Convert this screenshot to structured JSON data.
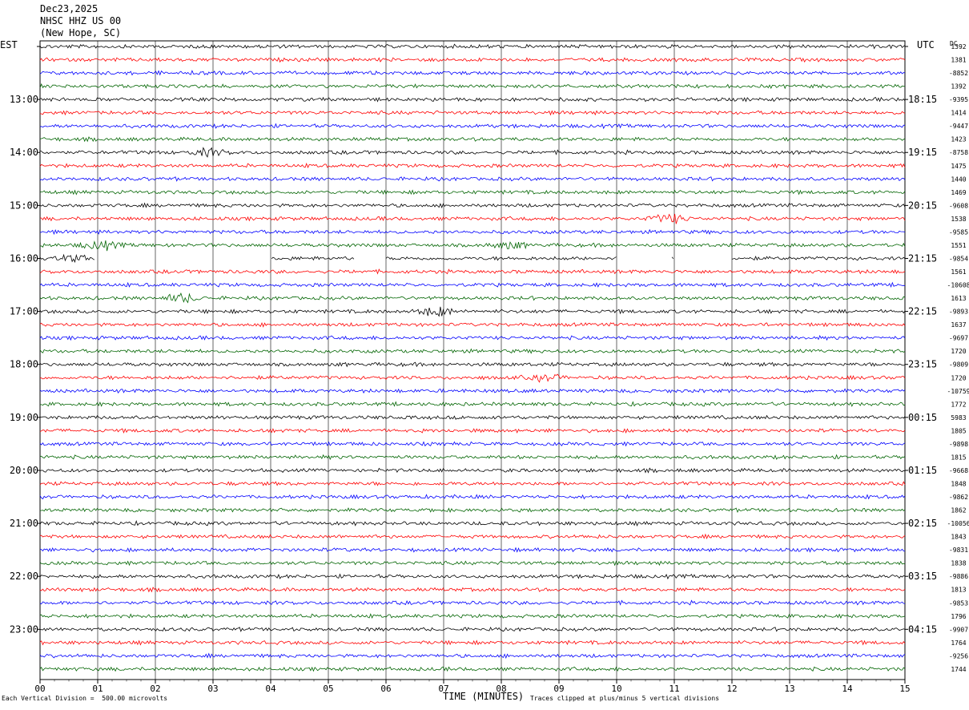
{
  "header": {
    "date": "Dec23,2025",
    "station": "NHSC HHZ US 00",
    "location": "(New Hope, SC)",
    "left_tz": "EST",
    "right_tz": "UTC",
    "dc_label": "DC"
  },
  "footer": {
    "division_note": "Each Vertical Division =  500.00 microvolts",
    "xaxis_title": "TIME (MINUTES)",
    "clip_note": "Traces clipped at plus/minus 5 vertical divisions"
  },
  "chart_data": {
    "type": "line",
    "title": "NHSC HHZ US 00 (New Hope, SC) Dec23,2025",
    "xlabel": "TIME (MINUTES)",
    "xlim": [
      0,
      15
    ],
    "x_ticks": [
      "00",
      "01",
      "02",
      "03",
      "04",
      "05",
      "06",
      "07",
      "08",
      "09",
      "10",
      "11",
      "12",
      "13",
      "14",
      "15"
    ],
    "grid": "vertical lines each minute",
    "rows_per_hour": 4,
    "trace_colors": [
      "#000000",
      "#ff0000",
      "#0000ff",
      "#006400"
    ],
    "est_labels": [
      "13:00",
      "14:00",
      "15:00",
      "16:00",
      "17:00",
      "18:00",
      "19:00",
      "20:00",
      "21:00",
      "22:00",
      "23:00"
    ],
    "utc_labels": [
      "18:15",
      "19:15",
      "20:15",
      "21:15",
      "22:15",
      "23:15",
      "00:15",
      "01:15",
      "02:15",
      "03:15",
      "04:15"
    ],
    "dc_offsets": [
      "1392",
      "1381",
      "-8852",
      "1392",
      "-9395",
      "1414",
      "-9447",
      "1423",
      "-8758",
      "1475",
      "1440",
      "1469",
      "-9608",
      "1538",
      "-9585",
      "1551",
      "-9854",
      "1561",
      "-10608",
      "1613",
      "-9893",
      "1637",
      "-9697",
      "1720",
      "-9809",
      "1720",
      "-10759",
      "1772",
      "5983",
      "1805",
      "-9898",
      "1815",
      "-9668",
      "1848",
      "-9862",
      "1862",
      "-10056",
      "1843",
      "-9831",
      "1838",
      "-9886",
      "1813",
      "-9853",
      "1796",
      "-9907",
      "1764",
      "-9256",
      "1744"
    ],
    "gaps": [
      {
        "row": 16,
        "from_min": 0.95,
        "to_min": 4.0
      },
      {
        "row": 16,
        "from_min": 5.45,
        "to_min": 6.0
      },
      {
        "row": 16,
        "from_min": 10.0,
        "to_min": 10.95
      },
      {
        "row": 16,
        "from_min": 11.0,
        "to_min": 12.0
      }
    ],
    "events": [
      {
        "row": 8,
        "minute": 2.9,
        "strength": 1.6
      },
      {
        "row": 13,
        "minute": 10.9,
        "strength": 2.2
      },
      {
        "row": 15,
        "minute": 1.05,
        "strength": 2.0
      },
      {
        "row": 15,
        "minute": 8.1,
        "strength": 1.5
      },
      {
        "row": 16,
        "minute": 0.6,
        "strength": 1.8
      },
      {
        "row": 19,
        "minute": 2.45,
        "strength": 2.0
      },
      {
        "row": 20,
        "minute": 6.85,
        "strength": 2.0
      },
      {
        "row": 25,
        "minute": 8.75,
        "strength": 1.5
      }
    ]
  }
}
